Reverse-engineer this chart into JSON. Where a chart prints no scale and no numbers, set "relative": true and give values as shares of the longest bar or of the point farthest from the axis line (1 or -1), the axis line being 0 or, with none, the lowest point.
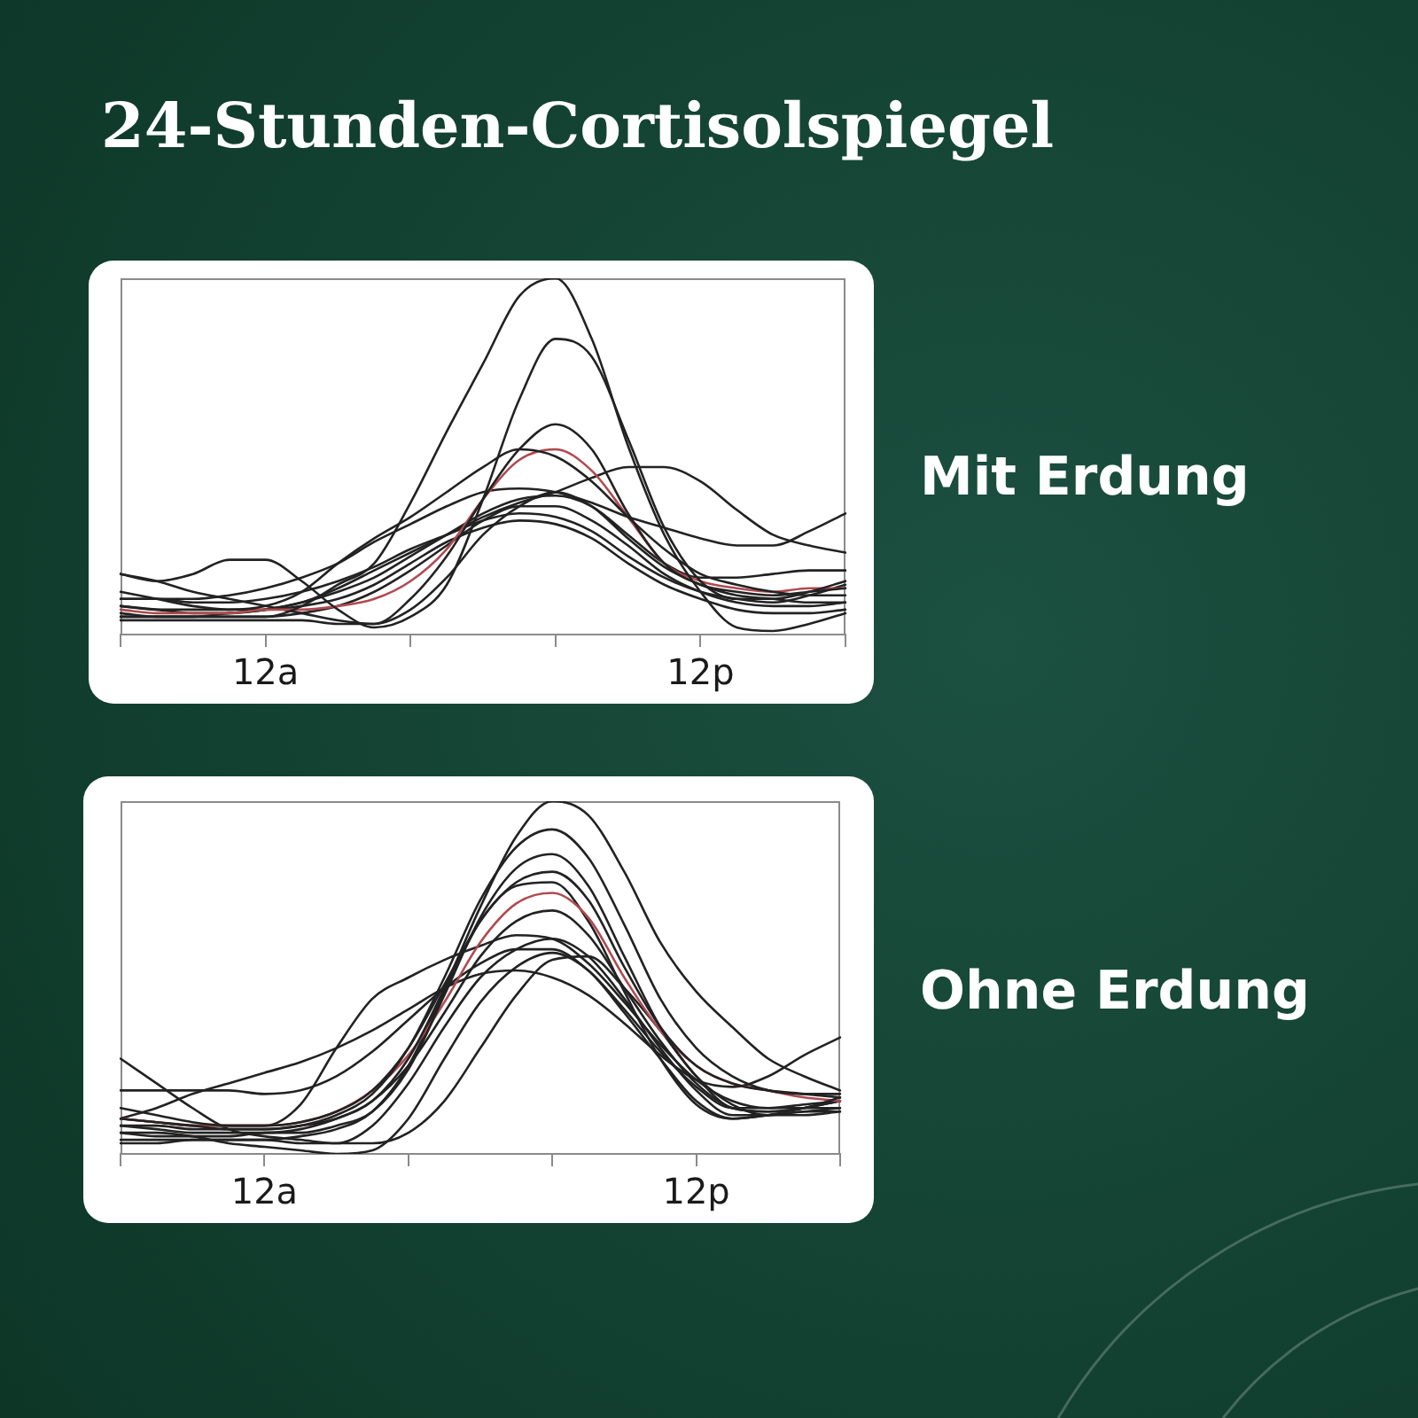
{
  "chart_data": [
    {
      "type": "line",
      "title": "24-Stunden-Cortisolspiegel",
      "annotations": [
        "Mit Erdung"
      ],
      "relative": true,
      "grid": false,
      "marker": "none",
      "categories": [
        null,
        null,
        null,
        null,
        "12a",
        null,
        null,
        null,
        null,
        null,
        null,
        null,
        null,
        null,
        null,
        null,
        "12p",
        null,
        null,
        null,
        null
      ],
      "series": [
        {
          "color": "#222222",
          "values": [
            0.06,
            0.05,
            0.05,
            0.05,
            0.05,
            0.08,
            0.14,
            0.2,
            0.37,
            0.57,
            0.76,
            0.95,
            1,
            0.83,
            0.53,
            0.28,
            0.12,
            0.02,
            0.01,
            0.03,
            0.06
          ]
        },
        {
          "color": "#222222",
          "values": [
            0.17,
            0.15,
            0.17,
            0.21,
            0.21,
            0.15,
            0.07,
            0.02,
            0.05,
            0.14,
            0.38,
            0.66,
            0.83,
            0.78,
            0.55,
            0.3,
            0.15,
            0.1,
            0.1,
            0.12,
            0.15
          ]
        },
        {
          "color": "#222222",
          "values": [
            0.04,
            0.04,
            0.04,
            0.04,
            0.04,
            0.04,
            0.03,
            0.03,
            0.1,
            0.22,
            0.38,
            0.52,
            0.59,
            0.52,
            0.34,
            0.2,
            0.14,
            0.12,
            0.11,
            0.12,
            0.13
          ]
        },
        {
          "color": "#222222",
          "values": [
            0.12,
            0.1,
            0.08,
            0.07,
            0.08,
            0.12,
            0.2,
            0.27,
            0.33,
            0.4,
            0.47,
            0.52,
            0.5,
            0.43,
            0.33,
            0.24,
            0.17,
            0.14,
            0.12,
            0.11,
            0.11
          ]
        },
        {
          "color": "#b04a50",
          "values": [
            0.07,
            0.06,
            0.06,
            0.06,
            0.07,
            0.07,
            0.08,
            0.1,
            0.15,
            0.24,
            0.38,
            0.49,
            0.52,
            0.46,
            0.33,
            0.2,
            0.15,
            0.13,
            0.12,
            0.13,
            0.13
          ]
        },
        {
          "color": "#222222",
          "values": [
            0.08,
            0.07,
            0.06,
            0.06,
            0.07,
            0.09,
            0.13,
            0.18,
            0.23,
            0.28,
            0.33,
            0.37,
            0.4,
            0.44,
            0.47,
            0.47,
            0.43,
            0.35,
            0.28,
            0.25,
            0.23
          ]
        },
        {
          "color": "#222222",
          "values": [
            0.1,
            0.1,
            0.1,
            0.11,
            0.13,
            0.16,
            0.2,
            0.26,
            0.31,
            0.36,
            0.4,
            0.41,
            0.4,
            0.37,
            0.33,
            0.3,
            0.27,
            0.25,
            0.25,
            0.29,
            0.34
          ]
        },
        {
          "color": "#222222",
          "values": [
            0.17,
            0.15,
            0.12,
            0.1,
            0.08,
            0.06,
            0.04,
            0.03,
            0.07,
            0.16,
            0.28,
            0.36,
            0.4,
            0.36,
            0.27,
            0.19,
            0.14,
            0.11,
            0.1,
            0.09,
            0.09
          ]
        },
        {
          "color": "#222222",
          "values": [
            0.05,
            0.05,
            0.05,
            0.05,
            0.05,
            0.06,
            0.08,
            0.12,
            0.18,
            0.25,
            0.32,
            0.36,
            0.36,
            0.32,
            0.25,
            0.17,
            0.12,
            0.09,
            0.08,
            0.08,
            0.09
          ]
        },
        {
          "color": "#222222",
          "values": [
            0.1,
            0.1,
            0.09,
            0.09,
            0.1,
            0.12,
            0.15,
            0.19,
            0.24,
            0.28,
            0.32,
            0.34,
            0.33,
            0.29,
            0.22,
            0.16,
            0.12,
            0.1,
            0.09,
            0.11,
            0.14
          ]
        },
        {
          "color": "#222222",
          "values": [
            0.08,
            0.07,
            0.07,
            0.07,
            0.07,
            0.08,
            0.1,
            0.14,
            0.2,
            0.26,
            0.3,
            0.32,
            0.31,
            0.27,
            0.2,
            0.14,
            0.1,
            0.07,
            0.06,
            0.06,
            0.07
          ]
        },
        {
          "color": "#222222",
          "values": [
            0.05,
            0.05,
            0.05,
            0.06,
            0.07,
            0.09,
            0.12,
            0.16,
            0.22,
            0.28,
            0.34,
            0.38,
            0.39,
            0.36,
            0.28,
            0.2,
            0.16,
            0.16,
            0.17,
            0.18,
            0.18
          ]
        }
      ]
    },
    {
      "type": "line",
      "annotations": [
        "Ohne Erdung"
      ],
      "relative": true,
      "grid": false,
      "marker": "none",
      "categories": [
        null,
        null,
        null,
        null,
        "12a",
        null,
        null,
        null,
        null,
        null,
        null,
        null,
        null,
        null,
        null,
        null,
        "12p",
        null,
        null,
        null,
        null
      ],
      "series": [
        {
          "color": "#222222",
          "values": [
            0.08,
            0.07,
            0.06,
            0.06,
            0.06,
            0.07,
            0.1,
            0.15,
            0.27,
            0.47,
            0.7,
            0.9,
            1,
            0.96,
            0.8,
            0.6,
            0.46,
            0.36,
            0.27,
            0.22,
            0.18
          ]
        },
        {
          "color": "#222222",
          "values": [
            0.1,
            0.09,
            0.08,
            0.07,
            0.07,
            0.08,
            0.11,
            0.17,
            0.3,
            0.5,
            0.72,
            0.87,
            0.92,
            0.84,
            0.65,
            0.44,
            0.3,
            0.22,
            0.18,
            0.17,
            0.17
          ]
        },
        {
          "color": "#222222",
          "values": [
            0.06,
            0.05,
            0.05,
            0.05,
            0.06,
            0.06,
            0.08,
            0.12,
            0.24,
            0.45,
            0.67,
            0.81,
            0.85,
            0.76,
            0.56,
            0.36,
            0.22,
            0.13,
            0.12,
            0.13,
            0.16
          ]
        },
        {
          "color": "#222222",
          "values": [
            0.13,
            0.11,
            0.09,
            0.08,
            0.08,
            0.09,
            0.12,
            0.18,
            0.3,
            0.48,
            0.66,
            0.77,
            0.8,
            0.72,
            0.53,
            0.36,
            0.25,
            0.2,
            0.18,
            0.17,
            0.16
          ]
        },
        {
          "color": "#b04a50",
          "values": [
            0.1,
            0.09,
            0.08,
            0.08,
            0.08,
            0.09,
            0.12,
            0.18,
            0.28,
            0.43,
            0.6,
            0.71,
            0.74,
            0.67,
            0.5,
            0.35,
            0.25,
            0.2,
            0.18,
            0.16,
            0.15
          ]
        },
        {
          "color": "#222222",
          "values": [
            0.03,
            0.03,
            0.04,
            0.04,
            0.04,
            0.05,
            0.07,
            0.12,
            0.25,
            0.46,
            0.66,
            0.76,
            0.77,
            0.66,
            0.46,
            0.27,
            0.14,
            0.1,
            0.11,
            0.13,
            0.15
          ]
        },
        {
          "color": "#222222",
          "values": [
            0.08,
            0.08,
            0.07,
            0.07,
            0.07,
            0.08,
            0.1,
            0.15,
            0.25,
            0.4,
            0.56,
            0.66,
            0.69,
            0.62,
            0.47,
            0.32,
            0.2,
            0.13,
            0.12,
            0.13,
            0.15
          ]
        },
        {
          "color": "#222222",
          "values": [
            0.04,
            0.04,
            0.04,
            0.04,
            0.04,
            0.03,
            0.03,
            0.08,
            0.2,
            0.36,
            0.5,
            0.58,
            0.61,
            0.56,
            0.44,
            0.3,
            0.18,
            0.11,
            0.11,
            0.12,
            0.12
          ]
        },
        {
          "color": "#222222",
          "values": [
            0.06,
            0.06,
            0.05,
            0.03,
            0.02,
            0.01,
            0,
            0.01,
            0.1,
            0.27,
            0.43,
            0.53,
            0.57,
            0.52,
            0.4,
            0.27,
            0.15,
            0.1,
            0.11,
            0.12,
            0.13
          ]
        },
        {
          "color": "#222222",
          "values": [
            0.27,
            0.2,
            0.13,
            0.07,
            0.05,
            0.04,
            0.03,
            0.03,
            0.06,
            0.15,
            0.3,
            0.45,
            0.55,
            0.56,
            0.47,
            0.35,
            0.22,
            0.14,
            0.11,
            0.11,
            0.12
          ]
        },
        {
          "color": "#222222",
          "values": [
            0.1,
            0.09,
            0.08,
            0.08,
            0.08,
            0.14,
            0.3,
            0.44,
            0.5,
            0.55,
            0.59,
            0.62,
            0.61,
            0.54,
            0.43,
            0.31,
            0.21,
            0.15,
            0.13,
            0.13,
            0.13
          ]
        },
        {
          "color": "#222222",
          "values": [
            0.1,
            0.13,
            0.17,
            0.2,
            0.23,
            0.26,
            0.3,
            0.35,
            0.41,
            0.47,
            0.51,
            0.52,
            0.5,
            0.45,
            0.37,
            0.28,
            0.21,
            0.19,
            0.22,
            0.28,
            0.33
          ]
        },
        {
          "color": "#222222",
          "values": [
            0.18,
            0.18,
            0.18,
            0.18,
            0.17,
            0.18,
            0.22,
            0.29,
            0.38,
            0.47,
            0.54,
            0.58,
            0.58,
            0.52,
            0.41,
            0.29,
            0.19,
            0.13,
            0.13,
            0.14,
            0.15
          ]
        }
      ]
    }
  ]
}
